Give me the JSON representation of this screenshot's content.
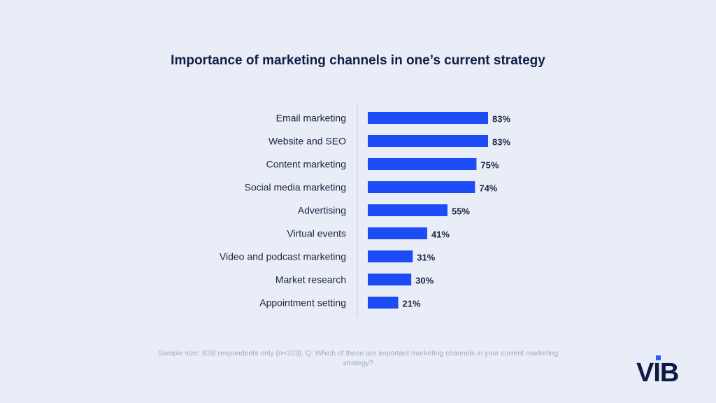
{
  "chart_data": {
    "type": "bar",
    "orientation": "horizontal",
    "title": "Importance of marketing channels in one’s current strategy",
    "categories": [
      "Email marketing",
      "Website and SEO",
      "Content marketing",
      "Social media marketing",
      "Advertising",
      "Virtual events",
      "Video and podcast marketing",
      "Market research",
      "Appointment setting"
    ],
    "values": [
      83,
      83,
      75,
      74,
      55,
      41,
      31,
      30,
      21
    ],
    "value_labels": [
      "83%",
      "83%",
      "75%",
      "74%",
      "55%",
      "41%",
      "31%",
      "30%",
      "21%"
    ],
    "xlim": [
      0,
      100
    ],
    "xlabel": "",
    "ylabel": "",
    "grid": false,
    "legend": "none",
    "bar_color": "#1d4bf5"
  },
  "footnote": "Sample size: B2B respondents only (n=323). Q: Which of these are important marketing channels in your current marketing strategy?",
  "logo_text": "VIB",
  "colors": {
    "background": "#e8edf8",
    "title": "#121c45",
    "label": "#1c2440",
    "axis": "#c9cfdc",
    "logo": "#0f1a45",
    "logo_accent": "#2f5cf6"
  }
}
